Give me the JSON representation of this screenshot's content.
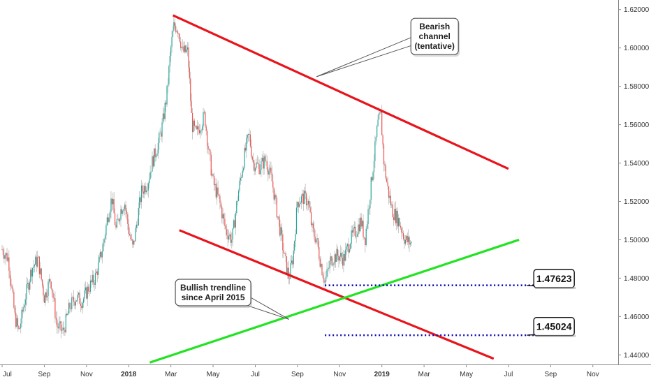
{
  "chart_data": {
    "type": "candlestick",
    "instrument_hint": "",
    "y_axis": {
      "position": "right",
      "ylim": [
        1.435,
        1.625
      ],
      "ticks": [
        "1.62000",
        "1.60000",
        "1.58000",
        "1.56000",
        "1.54000",
        "1.52000",
        "1.50000",
        "1.48000",
        "1.46000",
        "1.44000"
      ],
      "tick_values": [
        1.62,
        1.6,
        1.58,
        1.56,
        1.54,
        1.52,
        1.5,
        1.48,
        1.46,
        1.44
      ]
    },
    "x_axis": {
      "ticks": [
        {
          "label": "Jul",
          "bold": false
        },
        {
          "label": "Sep",
          "bold": false
        },
        {
          "label": "Nov",
          "bold": false
        },
        {
          "label": "2018",
          "bold": true
        },
        {
          "label": "Mar",
          "bold": false
        },
        {
          "label": "May",
          "bold": false
        },
        {
          "label": "Jul",
          "bold": false
        },
        {
          "label": "Sep",
          "bold": false
        },
        {
          "label": "Nov",
          "bold": false
        },
        {
          "label": "2019",
          "bold": true
        },
        {
          "label": "Mar",
          "bold": false
        },
        {
          "label": "May",
          "bold": false
        },
        {
          "label": "Jul",
          "bold": false
        },
        {
          "label": "Sep",
          "bold": false
        },
        {
          "label": "Nov",
          "bold": false
        }
      ],
      "tick_months": [
        0,
        2,
        4,
        6,
        8,
        10,
        12,
        14,
        16,
        18,
        20,
        22,
        24,
        26,
        28
      ],
      "start_month_index": -0.1,
      "end_month_index": 29.2
    },
    "colors": {
      "up": "#26a69a",
      "down": "#ef5350",
      "wick": "#b0b0b0",
      "channel": "#e8141b",
      "trendline": "#22e322",
      "level": "#0a0ab4"
    },
    "price_path": [
      [
        0.0,
        1.495
      ],
      [
        0.3,
        1.49
      ],
      [
        0.6,
        1.46
      ],
      [
        0.8,
        1.452
      ],
      [
        1.1,
        1.47
      ],
      [
        1.4,
        1.485
      ],
      [
        1.7,
        1.49
      ],
      [
        2.0,
        1.47
      ],
      [
        2.3,
        1.48
      ],
      [
        2.6,
        1.455
      ],
      [
        2.9,
        1.452
      ],
      [
        3.2,
        1.465
      ],
      [
        3.5,
        1.47
      ],
      [
        3.8,
        1.468
      ],
      [
        4.1,
        1.475
      ],
      [
        4.4,
        1.48
      ],
      [
        4.6,
        1.488
      ],
      [
        4.8,
        1.498
      ],
      [
        5.0,
        1.512
      ],
      [
        5.2,
        1.522
      ],
      [
        5.4,
        1.505
      ],
      [
        5.6,
        1.515
      ],
      [
        5.8,
        1.52
      ],
      [
        6.0,
        1.505
      ],
      [
        6.2,
        1.495
      ],
      [
        6.4,
        1.51
      ],
      [
        6.6,
        1.525
      ],
      [
        6.9,
        1.53
      ],
      [
        7.1,
        1.54
      ],
      [
        7.4,
        1.55
      ],
      [
        7.6,
        1.56
      ],
      [
        7.8,
        1.575
      ],
      [
        8.0,
        1.6
      ],
      [
        8.15,
        1.612
      ],
      [
        8.35,
        1.61
      ],
      [
        8.55,
        1.598
      ],
      [
        8.8,
        1.598
      ],
      [
        9.0,
        1.56
      ],
      [
        9.2,
        1.555
      ],
      [
        9.4,
        1.56
      ],
      [
        9.6,
        1.565
      ],
      [
        9.8,
        1.545
      ],
      [
        10.0,
        1.53
      ],
      [
        10.3,
        1.52
      ],
      [
        10.6,
        1.505
      ],
      [
        10.9,
        1.5
      ],
      [
        11.2,
        1.525
      ],
      [
        11.5,
        1.545
      ],
      [
        11.7,
        1.555
      ],
      [
        11.9,
        1.54
      ],
      [
        12.2,
        1.538
      ],
      [
        12.5,
        1.542
      ],
      [
        12.8,
        1.53
      ],
      [
        13.1,
        1.51
      ],
      [
        13.4,
        1.49
      ],
      [
        13.6,
        1.48
      ],
      [
        13.8,
        1.492
      ],
      [
        14.0,
        1.52
      ],
      [
        14.3,
        1.522
      ],
      [
        14.5,
        1.52
      ],
      [
        14.7,
        1.505
      ],
      [
        14.9,
        1.5
      ],
      [
        15.1,
        1.488
      ],
      [
        15.3,
        1.478
      ],
      [
        15.6,
        1.49
      ],
      [
        15.9,
        1.492
      ],
      [
        16.2,
        1.49
      ],
      [
        16.5,
        1.5
      ],
      [
        16.8,
        1.505
      ],
      [
        17.0,
        1.51
      ],
      [
        17.2,
        1.5
      ],
      [
        17.4,
        1.52
      ],
      [
        17.6,
        1.54
      ],
      [
        17.8,
        1.56
      ],
      [
        17.95,
        1.565
      ],
      [
        18.1,
        1.54
      ],
      [
        18.3,
        1.525
      ],
      [
        18.5,
        1.515
      ],
      [
        18.8,
        1.51
      ],
      [
        19.1,
        1.5
      ],
      [
        19.4,
        1.498
      ]
    ],
    "channel_lines": [
      {
        "from": [
          8.1,
          1.617
        ],
        "to": [
          24.0,
          1.537
        ]
      },
      {
        "from": [
          8.4,
          1.505
        ],
        "to": [
          23.3,
          1.438
        ]
      }
    ],
    "trendline": {
      "from": [
        7.0,
        1.436
      ],
      "to": [
        24.5,
        1.5
      ]
    },
    "levels": [
      {
        "value": 1.47623,
        "label": "1.47623",
        "from": 15.3,
        "to": 25.4,
        "box_x": 25.2,
        "box_y": 1.4845
      },
      {
        "value": 1.45024,
        "label": "1.45024",
        "from": 15.3,
        "to": 25.4,
        "box_x": 25.2,
        "box_y": 1.4595
      }
    ],
    "annotations": [
      {
        "lines": [
          "Bearish",
          "channel",
          "(tentative)"
        ],
        "box_center": [
          20.5,
          1.606
        ],
        "tail": [
          14.9,
          1.585
        ]
      },
      {
        "lines": [
          "Bullish trendline",
          "since April 2015"
        ],
        "box_center": [
          10.0,
          1.4725
        ],
        "tail": [
          13.6,
          1.4585
        ]
      }
    ]
  }
}
